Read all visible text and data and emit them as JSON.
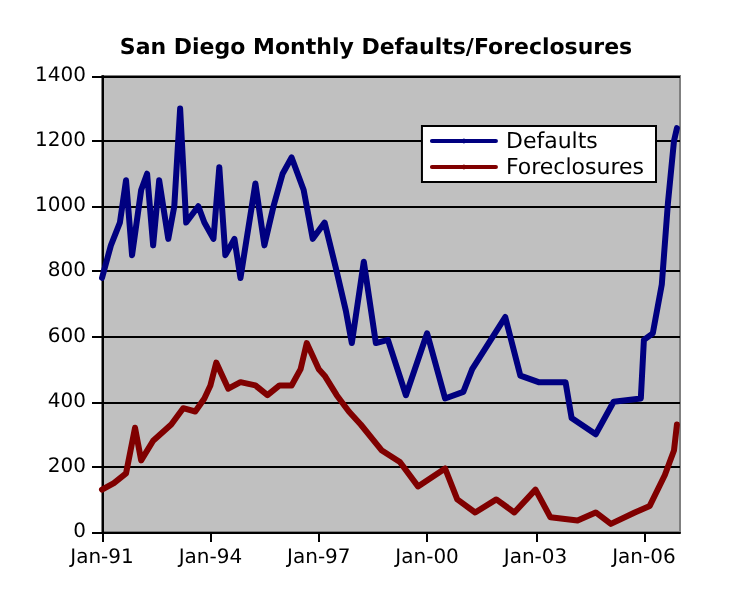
{
  "chart_data": {
    "type": "line",
    "title": "San Diego Monthly Defaults/Foreclosures",
    "xlim": [
      "1991-01",
      "2007-01"
    ],
    "xticks": [
      {
        "value": "1991-01",
        "label": "Jan-91"
      },
      {
        "value": "1994-01",
        "label": "Jan-94"
      },
      {
        "value": "1997-01",
        "label": "Jan-97"
      },
      {
        "value": "2000-01",
        "label": "Jan-00"
      },
      {
        "value": "2003-01",
        "label": "Jan-03"
      },
      {
        "value": "2006-01",
        "label": "Jan-06"
      }
    ],
    "ylim": [
      0,
      1400
    ],
    "yticks": [
      0,
      200,
      400,
      600,
      800,
      1000,
      1200,
      1400
    ],
    "grid": "y",
    "legend": "top right",
    "marker": "none",
    "line_style": "solid",
    "series": [
      {
        "name": "Defaults",
        "color": "#000080",
        "x": [
          "1991-01",
          "1991-04",
          "1991-07",
          "1991-09",
          "1991-11",
          "1992-02",
          "1992-04",
          "1992-06",
          "1992-08",
          "1992-11",
          "1993-01",
          "1993-03",
          "1993-05",
          "1993-09",
          "1993-11",
          "1994-02",
          "1994-04",
          "1994-06",
          "1994-09",
          "1994-11",
          "1995-04",
          "1995-07",
          "1995-10",
          "1996-01",
          "1996-04",
          "1996-08",
          "1996-11",
          "1997-03",
          "1997-07",
          "1997-10",
          "1997-12",
          "1998-04",
          "1998-08",
          "1998-12",
          "1999-06",
          "2000-01",
          "2000-07",
          "2001-01",
          "2001-04",
          "2002-03",
          "2002-08",
          "2003-02",
          "2003-11",
          "2004-01",
          "2004-09",
          "2005-03",
          "2005-12",
          "2006-01",
          "2006-04",
          "2006-07",
          "2006-09",
          "2006-11",
          "2006-12"
        ],
        "values": [
          780,
          880,
          950,
          1080,
          850,
          1050,
          1100,
          880,
          1080,
          900,
          1000,
          1300,
          950,
          1000,
          950,
          900,
          1120,
          850,
          900,
          780,
          1070,
          880,
          1000,
          1100,
          1150,
          1050,
          900,
          950,
          800,
          680,
          580,
          830,
          580,
          590,
          420,
          610,
          410,
          430,
          500,
          660,
          480,
          460,
          460,
          350,
          300,
          400,
          410,
          590,
          610,
          760,
          1010,
          1200,
          1240
        ]
      },
      {
        "name": "Foreclosures",
        "color": "#800000",
        "x": [
          "1991-01",
          "1991-05",
          "1991-09",
          "1991-12",
          "1992-02",
          "1992-06",
          "1992-12",
          "1993-04",
          "1993-08",
          "1993-11",
          "1994-01",
          "1994-03",
          "1994-07",
          "1994-11",
          "1995-04",
          "1995-08",
          "1995-12",
          "1996-04",
          "1996-07",
          "1996-09",
          "1997-01",
          "1997-03",
          "1997-07",
          "1997-11",
          "1998-03",
          "1998-10",
          "1999-04",
          "1999-10",
          "2000-07",
          "2000-11",
          "2001-05",
          "2001-12",
          "2002-06",
          "2003-01",
          "2003-06",
          "2004-03",
          "2004-09",
          "2005-02",
          "2005-10",
          "2006-03",
          "2006-08",
          "2006-11",
          "2006-12"
        ],
        "values": [
          130,
          150,
          180,
          320,
          220,
          280,
          330,
          380,
          370,
          410,
          450,
          520,
          440,
          460,
          450,
          420,
          450,
          450,
          500,
          580,
          500,
          480,
          420,
          370,
          330,
          250,
          215,
          140,
          195,
          100,
          60,
          100,
          60,
          130,
          45,
          35,
          60,
          25,
          60,
          80,
          175,
          250,
          330
        ]
      }
    ]
  }
}
